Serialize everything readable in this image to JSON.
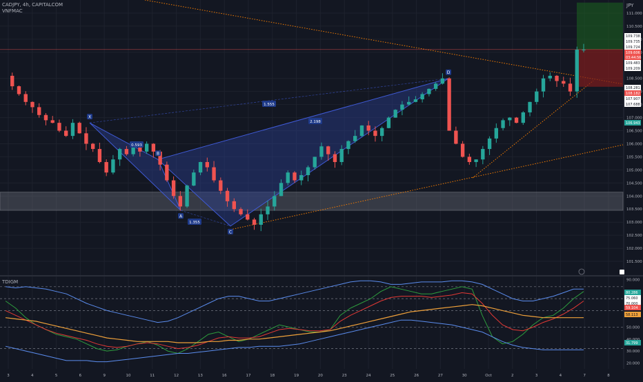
{
  "header": {
    "symbol_line": "CADJPY, 4h, CAPITALCOM",
    "indicator_label": "VNFMAC",
    "oscillator_label": "TDIGM",
    "currency": "JPY"
  },
  "colors": {
    "background": "#131722",
    "grid": "#1e222d",
    "up_candle": "#26a69a",
    "down_candle": "#ef5350",
    "pattern_fill": "#2a3f8f",
    "pattern_stroke": "#3f5ad6",
    "zone_fill": "#787b86",
    "trendline_orange": "#f57c00",
    "tp_zone": "#1b5e20",
    "sl_zone": "#7f1d1d",
    "osc_blue": "#5b8def",
    "osc_green": "#2e9e3e",
    "osc_red": "#e53935",
    "osc_orange": "#f0a13a"
  },
  "chart_data": [
    {
      "type": "candlestick",
      "pair": "CADJPY",
      "timeframe": "4h",
      "ylim": [
        101.0,
        111.5
      ],
      "y_ticks": [
        "111.000",
        "110.500",
        "110.000",
        "109.500",
        "108.500",
        "108.000",
        "107.500",
        "107.000",
        "106.500",
        "106.000",
        "105.500",
        "105.000",
        "104.500",
        "104.000",
        "103.500",
        "103.000",
        "102.500",
        "102.000",
        "101.500"
      ],
      "x_ticks": [
        "3",
        "4",
        "5",
        "6",
        "9",
        "10",
        "11",
        "12",
        "13",
        "16",
        "17",
        "18",
        "19",
        "20",
        "23",
        "24",
        "25",
        "26",
        "27",
        "30",
        "Oct",
        "2",
        "3",
        "4",
        "7",
        "8"
      ],
      "price_labels": [
        {
          "value": "109.738",
          "style": "white"
        },
        {
          "value": "109.735",
          "style": "white"
        },
        {
          "value": "109.724",
          "style": "white"
        },
        {
          "value": "109.606",
          "style": "red"
        },
        {
          "value": "03:44:56",
          "style": "red"
        },
        {
          "value": "109.483",
          "style": "white"
        },
        {
          "value": "109.209",
          "style": "white"
        },
        {
          "value": "108.281",
          "style": "white"
        },
        {
          "value": "108.182",
          "style": "red"
        },
        {
          "value": "107.907",
          "style": "white"
        },
        {
          "value": "107.688",
          "style": "white"
        },
        {
          "value": "106.943",
          "style": "green"
        }
      ],
      "harmonic_pattern": {
        "points": [
          {
            "label": "X",
            "price": 106.8
          },
          {
            "label": "A",
            "price": 103.45
          },
          {
            "label": "B",
            "price": 105.4
          },
          {
            "label": "C",
            "price": 102.85
          },
          {
            "label": "D",
            "price": 108.5
          }
        ],
        "ratios": [
          "0.593",
          "1.555",
          "2.198",
          "1.355"
        ]
      },
      "support_zone": [
        103.45,
        104.15
      ],
      "position": {
        "entry": 109.606,
        "take_profit": 111.4,
        "stop_loss": 108.18
      },
      "price_points": [
        108.6,
        108.2,
        107.9,
        107.6,
        107.4,
        107.1,
        106.9,
        106.8,
        106.5,
        106.3,
        106.8,
        106.4,
        106.0,
        105.8,
        105.3,
        104.9,
        105.4,
        105.8,
        105.6,
        105.9,
        105.7,
        106.0,
        105.7,
        105.2,
        104.6,
        104.0,
        103.6,
        104.4,
        104.9,
        105.3,
        105.1,
        104.6,
        104.2,
        103.8,
        103.5,
        103.3,
        103.1,
        102.9,
        103.3,
        103.6,
        104.0,
        104.5,
        104.9,
        104.6,
        104.8,
        105.1,
        105.5,
        105.9,
        105.6,
        105.3,
        105.8,
        106.1,
        106.3,
        106.7,
        106.5,
        106.3,
        106.6,
        107.0,
        107.3,
        107.5,
        107.6,
        107.7,
        107.9,
        108.1,
        108.3,
        108.5,
        106.5,
        106.0,
        105.5,
        105.3,
        105.4,
        105.8,
        106.2,
        106.6,
        106.9,
        107.0,
        106.8,
        107.2,
        107.6,
        108.0,
        108.5,
        108.6,
        108.4,
        108.3,
        108.0,
        109.6,
        109.6
      ],
      "trendline_x_angle": "descending from top-left to right edge"
    },
    {
      "type": "line",
      "name": "TDIGM",
      "ylim": [
        15,
        92
      ],
      "y_ticks": [
        "90.000",
        "80.000",
        "70.000",
        "60.000",
        "50.000",
        "40.000",
        "30.000",
        "20.000"
      ],
      "levels": [
        84,
        74,
        64,
        50,
        32
      ],
      "value_labels": [
        {
          "value": "80.286",
          "style": "green"
        },
        {
          "value": "75.060",
          "style": "white"
        },
        {
          "value": "70.000",
          "style": "white"
        },
        {
          "value": "59.104",
          "style": "red"
        },
        {
          "value": "58.113",
          "style": "orange"
        },
        {
          "value": "31.799",
          "style": "green"
        }
      ],
      "series": [
        {
          "values": [
            72,
            66,
            58,
            52,
            48,
            44,
            42,
            40,
            36,
            32,
            30,
            31,
            34,
            36,
            38,
            35,
            30,
            28,
            32,
            38,
            44,
            46,
            42,
            38,
            40,
            44,
            48,
            52,
            50,
            48,
            46,
            46,
            48,
            60,
            66,
            70,
            74,
            80,
            84,
            82,
            80,
            78,
            78,
            80,
            82,
            84,
            82,
            60,
            42,
            36,
            38,
            44,
            52,
            58,
            60,
            66,
            74,
            80
          ]
        },
        {
          "values": [
            64,
            60,
            56,
            52,
            48,
            45,
            43,
            41,
            39,
            36,
            34,
            33,
            34,
            36,
            37,
            36,
            34,
            32,
            33,
            35,
            38,
            41,
            42,
            41,
            41,
            42,
            45,
            48,
            49,
            48,
            47,
            47,
            48,
            55,
            60,
            64,
            68,
            72,
            75,
            76,
            76,
            76,
            75,
            76,
            77,
            79,
            78,
            70,
            60,
            52,
            48,
            47,
            50,
            54,
            57,
            61,
            66,
            72
          ]
        },
        {
          "values": [
            58,
            57,
            56,
            55,
            53,
            51,
            49,
            47,
            45,
            43,
            41,
            40,
            39,
            38,
            38,
            38,
            38,
            37,
            37,
            37,
            38,
            38,
            39,
            39,
            40,
            40,
            41,
            42,
            43,
            44,
            45,
            46,
            47,
            49,
            51,
            53,
            55,
            57,
            59,
            61,
            63,
            64,
            65,
            66,
            67,
            68,
            69,
            68,
            66,
            64,
            62,
            60,
            59,
            58,
            58,
            58,
            58,
            58
          ]
        },
        {
          "values": [
            84,
            83,
            84,
            83,
            82,
            80,
            78,
            74,
            70,
            67,
            64,
            62,
            60,
            58,
            56,
            54,
            55,
            58,
            62,
            66,
            70,
            74,
            76,
            76,
            74,
            72,
            72,
            74,
            76,
            78,
            80,
            82,
            84,
            86,
            88,
            89,
            89,
            88,
            86,
            86,
            87,
            88,
            88,
            88,
            89,
            89,
            88,
            86,
            82,
            78,
            74,
            72,
            72,
            74,
            76,
            79,
            82,
            82
          ]
        },
        {
          "values": [
            34,
            32,
            30,
            28,
            26,
            24,
            22,
            22,
            22,
            21,
            21,
            22,
            23,
            24,
            25,
            26,
            27,
            28,
            28,
            29,
            30,
            31,
            32,
            33,
            33,
            34,
            34,
            34,
            35,
            36,
            38,
            40,
            42,
            44,
            46,
            48,
            50,
            52,
            54,
            56,
            56,
            55,
            54,
            53,
            52,
            50,
            48,
            46,
            42,
            38,
            35,
            33,
            32,
            31,
            31,
            31,
            31,
            31
          ]
        }
      ]
    }
  ]
}
